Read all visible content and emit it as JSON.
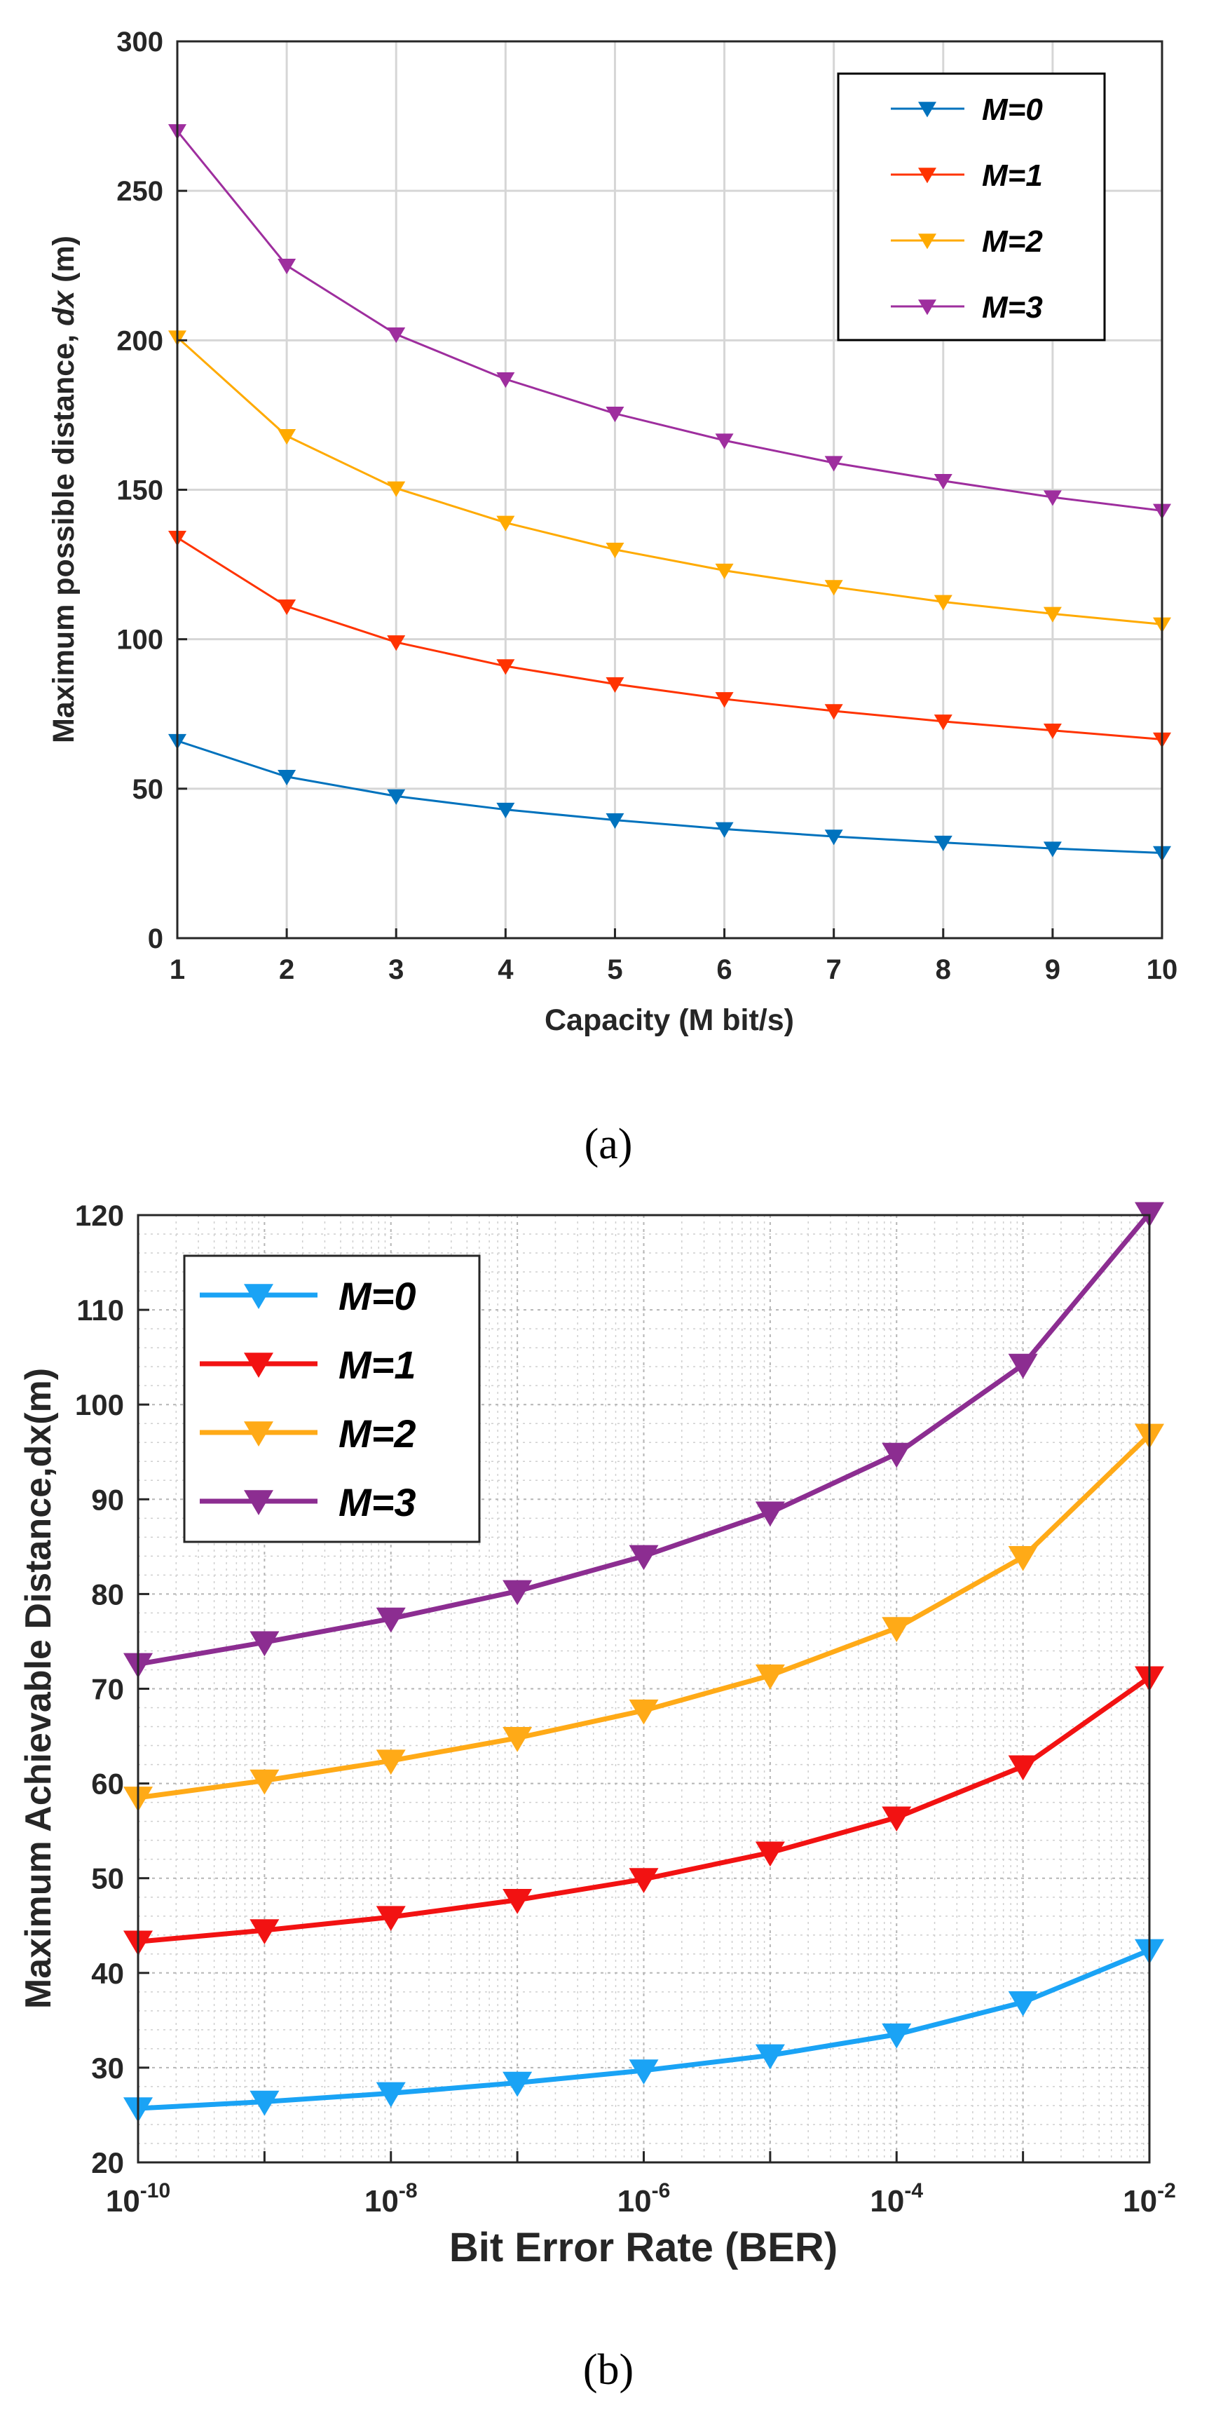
{
  "chart_data": [
    {
      "type": "line",
      "panel_label": "(a)",
      "xlabel": "Capacity (M bit/s)",
      "ylabel_prefix": "Maximum possible distance,  ",
      "ylabel_var": "dx",
      "ylabel_suffix": " (m)",
      "x": [
        1,
        2,
        3,
        4,
        5,
        6,
        7,
        8,
        9,
        10
      ],
      "xlim": [
        1,
        10
      ],
      "ylim": [
        0,
        300
      ],
      "xticks": [
        1,
        2,
        3,
        4,
        5,
        6,
        7,
        8,
        9,
        10
      ],
      "yticks": [
        0,
        50,
        100,
        150,
        200,
        250,
        300
      ],
      "grid": true,
      "legend_position": "top-right",
      "series": [
        {
          "name": "M=0",
          "color": "#0072BD",
          "values": [
            66,
            54,
            47.5,
            43,
            39.5,
            36.5,
            34,
            32,
            30,
            28.5
          ]
        },
        {
          "name": "M=1",
          "color": "#FF3300",
          "values": [
            134,
            111,
            99,
            91,
            85,
            80,
            76,
            72.5,
            69.5,
            66.5
          ]
        },
        {
          "name": "M=2",
          "color": "#FFAA00",
          "values": [
            201,
            168,
            150.5,
            139,
            130,
            123,
            117.5,
            112.5,
            108.5,
            105
          ]
        },
        {
          "name": "M=3",
          "color": "#9E2E9E",
          "values": [
            270,
            225,
            202,
            187,
            175.5,
            166.5,
            159,
            153,
            147.5,
            143
          ]
        }
      ]
    },
    {
      "type": "line",
      "panel_label": "(b)",
      "xlabel": "Bit Error Rate (BER)",
      "ylabel": "Maximum Achievable Distance,dx(m)",
      "x_scale": "log",
      "x_exponents": [
        -10,
        -9,
        -8,
        -7,
        -6,
        -5,
        -4,
        -3,
        -2
      ],
      "xtick_exponents": [
        "-10",
        "-8",
        "-6",
        "-4",
        "-2"
      ],
      "xtick_base": "10",
      "ylim": [
        20,
        120
      ],
      "yticks": [
        20,
        30,
        40,
        50,
        60,
        70,
        80,
        90,
        100,
        110,
        120
      ],
      "grid": true,
      "legend_position": "top-left",
      "series": [
        {
          "name": "M=0",
          "color": "#1AA3F5",
          "values": [
            25.7,
            26.4,
            27.3,
            28.4,
            29.7,
            31.3,
            33.5,
            36.9,
            42.4
          ]
        },
        {
          "name": "M=1",
          "color": "#F21212",
          "values": [
            43.3,
            44.5,
            45.9,
            47.7,
            49.9,
            52.7,
            56.4,
            61.8,
            71.2
          ]
        },
        {
          "name": "M=2",
          "color": "#FFAA17",
          "values": [
            58.5,
            60.3,
            62.4,
            64.8,
            67.7,
            71.4,
            76.4,
            83.9,
            96.8
          ]
        },
        {
          "name": "M=3",
          "color": "#8C2D91",
          "values": [
            72.6,
            74.9,
            77.4,
            80.3,
            84.0,
            88.6,
            94.8,
            104.2,
            120.2
          ]
        }
      ]
    }
  ]
}
